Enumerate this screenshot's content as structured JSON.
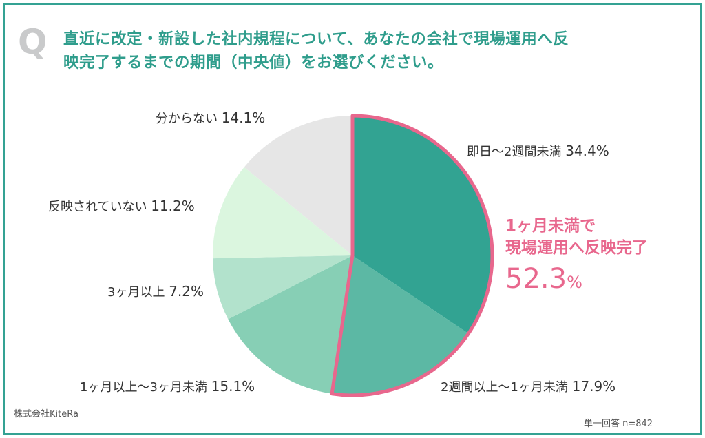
{
  "question": {
    "mark": "Q",
    "line1": "直近に改定・新設した社内規程について、あなたの会社で現場運用へ反",
    "line2": "映完了するまでの期間（中央値）をお選びください。"
  },
  "chart_data": {
    "type": "pie",
    "start_angle_deg": 0,
    "direction": "clockwise",
    "slices": [
      {
        "label": "即日〜2週間未満",
        "value": 34.4,
        "color": "#32a392"
      },
      {
        "label": "2週間以上〜1ヶ月未満",
        "value": 17.9,
        "color": "#5cb8a4"
      },
      {
        "label": "1ヶ月以上〜3ヶ月未満",
        "value": 15.1,
        "color": "#87cfb5"
      },
      {
        "label": "3ヶ月以上",
        "value": 7.2,
        "color": "#b2e2cc"
      },
      {
        "label": "反映されていない",
        "value": 11.2,
        "color": "#dbf6df"
      },
      {
        "label": "分からない",
        "value": 14.1,
        "color": "#e6e6e6"
      }
    ],
    "highlight": {
      "line1": "1ヶ月未満で",
      "line2": "現場運用へ反映完了",
      "value": "52.3",
      "unit": "%",
      "color": "#e8678d"
    }
  },
  "labels": {
    "s0_text": "即日〜2週間未満",
    "s0_val": "34.4%",
    "s1_text": "2週間以上〜1ヶ月未満",
    "s1_val": "17.9%",
    "s2_text": "1ヶ月以上〜3ヶ月未満",
    "s2_val": "15.1%",
    "s3_text": "3ヶ月以上",
    "s3_val": "7.2%",
    "s4_text": "反映されていない",
    "s4_val": "11.2%",
    "s5_text": "分からない",
    "s5_val": "14.1%"
  },
  "footer": {
    "credit": "株式会社KiteRa",
    "sample": "単一回答 n=842"
  },
  "colors": {
    "frame": "#34a293",
    "title": "#2f9d8c",
    "highlight": "#e8678d"
  }
}
